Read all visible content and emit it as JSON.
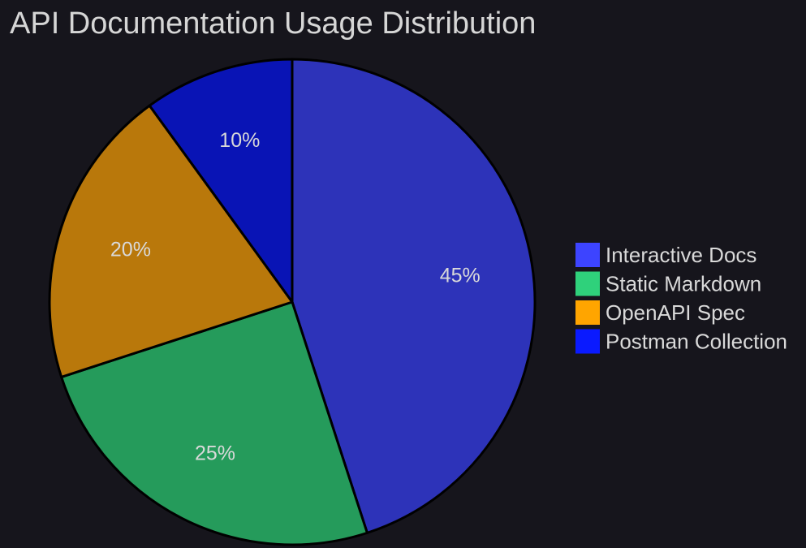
{
  "chart_data": {
    "type": "pie",
    "title": "API Documentation Usage Distribution",
    "categories": [
      "Interactive Docs",
      "Static Markdown",
      "OpenAPI Spec",
      "Postman Collection"
    ],
    "values": [
      45,
      25,
      20,
      10
    ],
    "value_labels": [
      "45%",
      "25%",
      "20%",
      "10%"
    ],
    "slice_colors": [
      "#2d33b9",
      "#259b5b",
      "#b9780b",
      "#0914b5"
    ],
    "legend_colors": [
      "#3d44ff",
      "#2fd17b",
      "#ffa500",
      "#0a1aff"
    ],
    "legend": {
      "position": "right",
      "entries": [
        "Interactive Docs",
        "Static Markdown",
        "OpenAPI Spec",
        "Postman Collection"
      ]
    },
    "start_angle": "12 o'clock",
    "direction": "clockwise"
  },
  "colors": {
    "background": "#16151c",
    "text": "#d9d9d9",
    "slice_border": "#000000"
  }
}
